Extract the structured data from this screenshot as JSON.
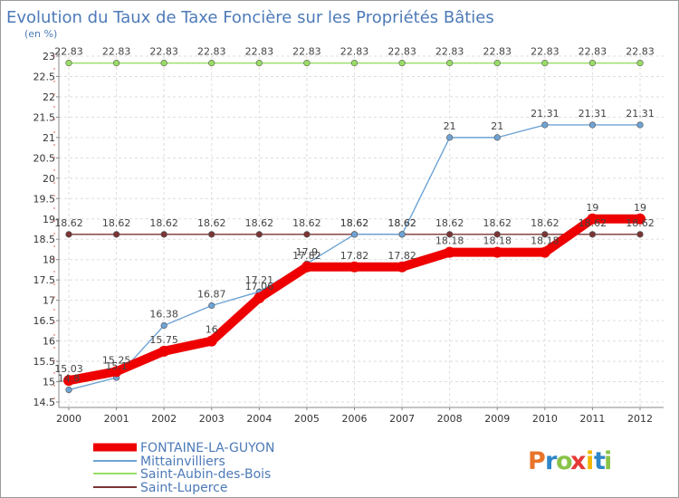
{
  "chart_data": {
    "type": "line",
    "title": "Evolution du Taux de Taxe Foncière sur les Propriétés Bâties",
    "ylabel": "(en %)",
    "xlabel": "",
    "x": [
      "2000",
      "2001",
      "2002",
      "2003",
      "2004",
      "2005",
      "2006",
      "2007",
      "2008",
      "2009",
      "2010",
      "2011",
      "2012"
    ],
    "ylim": [
      14.5,
      23
    ],
    "yticks": [
      "14.5",
      "15",
      "15.5",
      "16",
      "16.5",
      "17",
      "17.5",
      "18",
      "18.5",
      "19",
      "19.5",
      "20",
      "20.5",
      "21",
      "21.5",
      "22",
      "22.5",
      "23"
    ],
    "series": [
      {
        "name": "FONTAINE-LA-GUYON",
        "color": "#ee0000",
        "values": [
          15.03,
          15.25,
          15.75,
          16,
          17.06,
          17.82,
          17.82,
          17.82,
          18.18,
          18.18,
          18.18,
          19,
          19
        ],
        "labels": [
          "15.03",
          "15.25",
          "15.75",
          "16",
          "17.06",
          "17.82",
          "17.82",
          "17.82",
          "18.18",
          "18.18",
          "18.18",
          "19",
          "19"
        ]
      },
      {
        "name": "Mittainvilliers",
        "color": "#6ea3d4",
        "values": [
          14.8,
          15.1,
          16.38,
          16.87,
          17.21,
          17.9,
          18.62,
          18.62,
          21,
          21,
          21.31,
          21.31,
          21.31
        ],
        "labels": [
          "14.8",
          "15.1",
          "16.38",
          "16.87",
          "17.21",
          "17.9",
          "18.62",
          "18.62",
          "21",
          "21",
          "21.31",
          "21.31",
          "21.31"
        ]
      },
      {
        "name": "Saint-Aubin-des-Bois",
        "color": "#99dd66",
        "values": [
          22.83,
          22.83,
          22.83,
          22.83,
          22.83,
          22.83,
          22.83,
          22.83,
          22.83,
          22.83,
          22.83,
          22.83,
          22.83
        ],
        "labels": [
          "22.83",
          "22.83",
          "22.83",
          "22.83",
          "22.83",
          "22.83",
          "22.83",
          "22.83",
          "22.83",
          "22.83",
          "22.83",
          "22.83",
          "22.83"
        ]
      },
      {
        "name": "Saint-Luperce",
        "color": "#7a3535",
        "values": [
          18.62,
          18.62,
          18.62,
          18.62,
          18.62,
          18.62,
          18.62,
          18.62,
          18.62,
          18.62,
          18.62,
          18.62,
          18.62
        ],
        "labels": [
          "18.62",
          "18.62",
          "18.62",
          "18.62",
          "18.62",
          "18.62",
          "18.62",
          "18.62",
          "18.62",
          "18.62",
          "18.62",
          "18.62",
          "18.62"
        ]
      }
    ]
  },
  "brand": {
    "letters": [
      "P",
      "r",
      "o",
      "x",
      "i",
      "t",
      "i"
    ],
    "colors": [
      "#e8742a",
      "#2f86c9",
      "#8bc34a",
      "#e53935",
      "#f2b705",
      "#2f86c9",
      "#8bc34a"
    ]
  }
}
